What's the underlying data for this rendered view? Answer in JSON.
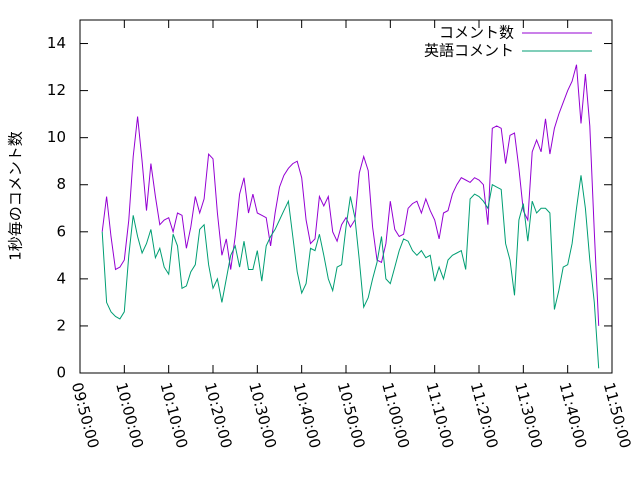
{
  "chart_data": {
    "type": "line",
    "ylabel": "1秒毎のコメント数",
    "legend": "top-right",
    "xlim": [
      "09:50:00",
      "11:50:00"
    ],
    "xticks": [
      "09:50:00",
      "10:00:00",
      "10:10:00",
      "10:20:00",
      "10:30:00",
      "10:40:00",
      "10:50:00",
      "11:00:00",
      "11:10:00",
      "11:20:00",
      "11:30:00",
      "11:40:00",
      "11:50:00"
    ],
    "ylim": [
      0,
      15
    ],
    "yticks": [
      0,
      2,
      4,
      6,
      8,
      10,
      12,
      14
    ],
    "x": [
      "09:55:00",
      "09:56:00",
      "09:57:00",
      "09:58:00",
      "09:59:00",
      "10:00:00",
      "10:01:00",
      "10:02:00",
      "10:03:00",
      "10:04:00",
      "10:05:00",
      "10:06:00",
      "10:07:00",
      "10:08:00",
      "10:09:00",
      "10:10:00",
      "10:11:00",
      "10:12:00",
      "10:13:00",
      "10:14:00",
      "10:15:00",
      "10:16:00",
      "10:17:00",
      "10:18:00",
      "10:19:00",
      "10:20:00",
      "10:21:00",
      "10:22:00",
      "10:23:00",
      "10:24:00",
      "10:25:00",
      "10:26:00",
      "10:27:00",
      "10:28:00",
      "10:29:00",
      "10:30:00",
      "10:31:00",
      "10:32:00",
      "10:33:00",
      "10:34:00",
      "10:35:00",
      "10:36:00",
      "10:37:00",
      "10:38:00",
      "10:39:00",
      "10:40:00",
      "10:41:00",
      "10:42:00",
      "10:43:00",
      "10:44:00",
      "10:45:00",
      "10:46:00",
      "10:47:00",
      "10:48:00",
      "10:49:00",
      "10:50:00",
      "10:51:00",
      "10:52:00",
      "10:53:00",
      "10:54:00",
      "10:55:00",
      "10:56:00",
      "10:57:00",
      "10:58:00",
      "10:59:00",
      "11:00:00",
      "11:01:00",
      "11:02:00",
      "11:03:00",
      "11:04:00",
      "11:05:00",
      "11:06:00",
      "11:07:00",
      "11:08:00",
      "11:09:00",
      "11:10:00",
      "11:11:00",
      "11:12:00",
      "11:13:00",
      "11:14:00",
      "11:15:00",
      "11:16:00",
      "11:17:00",
      "11:18:00",
      "11:19:00",
      "11:20:00",
      "11:21:00",
      "11:22:00",
      "11:23:00",
      "11:24:00",
      "11:25:00",
      "11:26:00",
      "11:27:00",
      "11:28:00",
      "11:29:00",
      "11:30:00",
      "11:31:00",
      "11:32:00",
      "11:33:00",
      "11:34:00",
      "11:35:00",
      "11:36:00",
      "11:37:00",
      "11:38:00",
      "11:39:00",
      "11:40:00",
      "11:41:00",
      "11:42:00",
      "11:43:00",
      "11:44:00",
      "11:45:00",
      "11:46:00",
      "11:47:00"
    ],
    "series": [
      {
        "name": "コメント数",
        "color": "#9400d3",
        "values": [
          6.0,
          7.5,
          5.8,
          4.4,
          4.5,
          4.8,
          6.5,
          9.2,
          10.9,
          9.0,
          6.9,
          8.9,
          7.5,
          6.3,
          6.5,
          6.6,
          6.0,
          6.8,
          6.7,
          5.3,
          6.2,
          7.5,
          6.8,
          7.4,
          9.3,
          9.1,
          6.8,
          5.0,
          5.7,
          4.4,
          5.8,
          7.6,
          8.3,
          6.8,
          7.6,
          6.8,
          6.7,
          6.6,
          5.4,
          6.8,
          7.9,
          8.4,
          8.7,
          8.9,
          9.0,
          8.3,
          6.5,
          5.5,
          5.7,
          7.5,
          7.1,
          7.5,
          6.0,
          5.6,
          6.3,
          6.6,
          6.2,
          6.5,
          8.5,
          9.2,
          8.6,
          6.2,
          4.8,
          4.7,
          5.5,
          7.3,
          6.1,
          5.8,
          5.9,
          7.0,
          7.2,
          7.3,
          6.8,
          7.4,
          6.9,
          6.5,
          5.7,
          6.8,
          6.9,
          7.6,
          8.0,
          8.3,
          8.2,
          8.1,
          8.3,
          8.2,
          8.0,
          6.3,
          10.4,
          10.5,
          10.4,
          8.9,
          10.1,
          10.2,
          8.7,
          6.9,
          6.5,
          9.4,
          9.9,
          9.4,
          10.8,
          9.3,
          10.4,
          11.0,
          11.5,
          12.0,
          12.4,
          13.1,
          10.6,
          12.7,
          10.5,
          6.0,
          2.0
        ]
      },
      {
        "name": "英語コメント",
        "color": "#009e73",
        "values": [
          6.0,
          3.0,
          2.6,
          2.4,
          2.3,
          2.6,
          5.0,
          6.7,
          5.8,
          5.1,
          5.5,
          6.1,
          4.9,
          5.3,
          4.5,
          4.2,
          5.9,
          5.4,
          3.6,
          3.7,
          4.3,
          4.6,
          6.1,
          6.3,
          4.6,
          3.6,
          4.0,
          3.0,
          4.0,
          5.0,
          5.4,
          4.5,
          5.6,
          4.4,
          4.4,
          5.2,
          3.9,
          5.4,
          5.8,
          6.1,
          6.5,
          6.9,
          7.3,
          5.8,
          4.3,
          3.4,
          3.8,
          5.3,
          5.2,
          5.9,
          5.0,
          4.0,
          3.5,
          4.5,
          4.6,
          6.2,
          7.5,
          6.6,
          4.8,
          2.8,
          3.2,
          4.0,
          4.7,
          5.8,
          4.0,
          3.8,
          4.5,
          5.2,
          5.7,
          5.6,
          5.2,
          5.0,
          5.2,
          4.9,
          5.0,
          3.9,
          4.5,
          4.0,
          4.8,
          5.0,
          5.1,
          5.2,
          4.4,
          7.4,
          7.6,
          7.5,
          7.3,
          7.0,
          8.0,
          7.9,
          7.8,
          5.5,
          4.8,
          3.3,
          6.5,
          7.2,
          5.6,
          7.3,
          6.8,
          7.0,
          7.0,
          6.8,
          2.7,
          3.5,
          4.5,
          4.6,
          5.5,
          7.0,
          8.4,
          7.0,
          4.8,
          3.0,
          0.2
        ]
      }
    ]
  }
}
